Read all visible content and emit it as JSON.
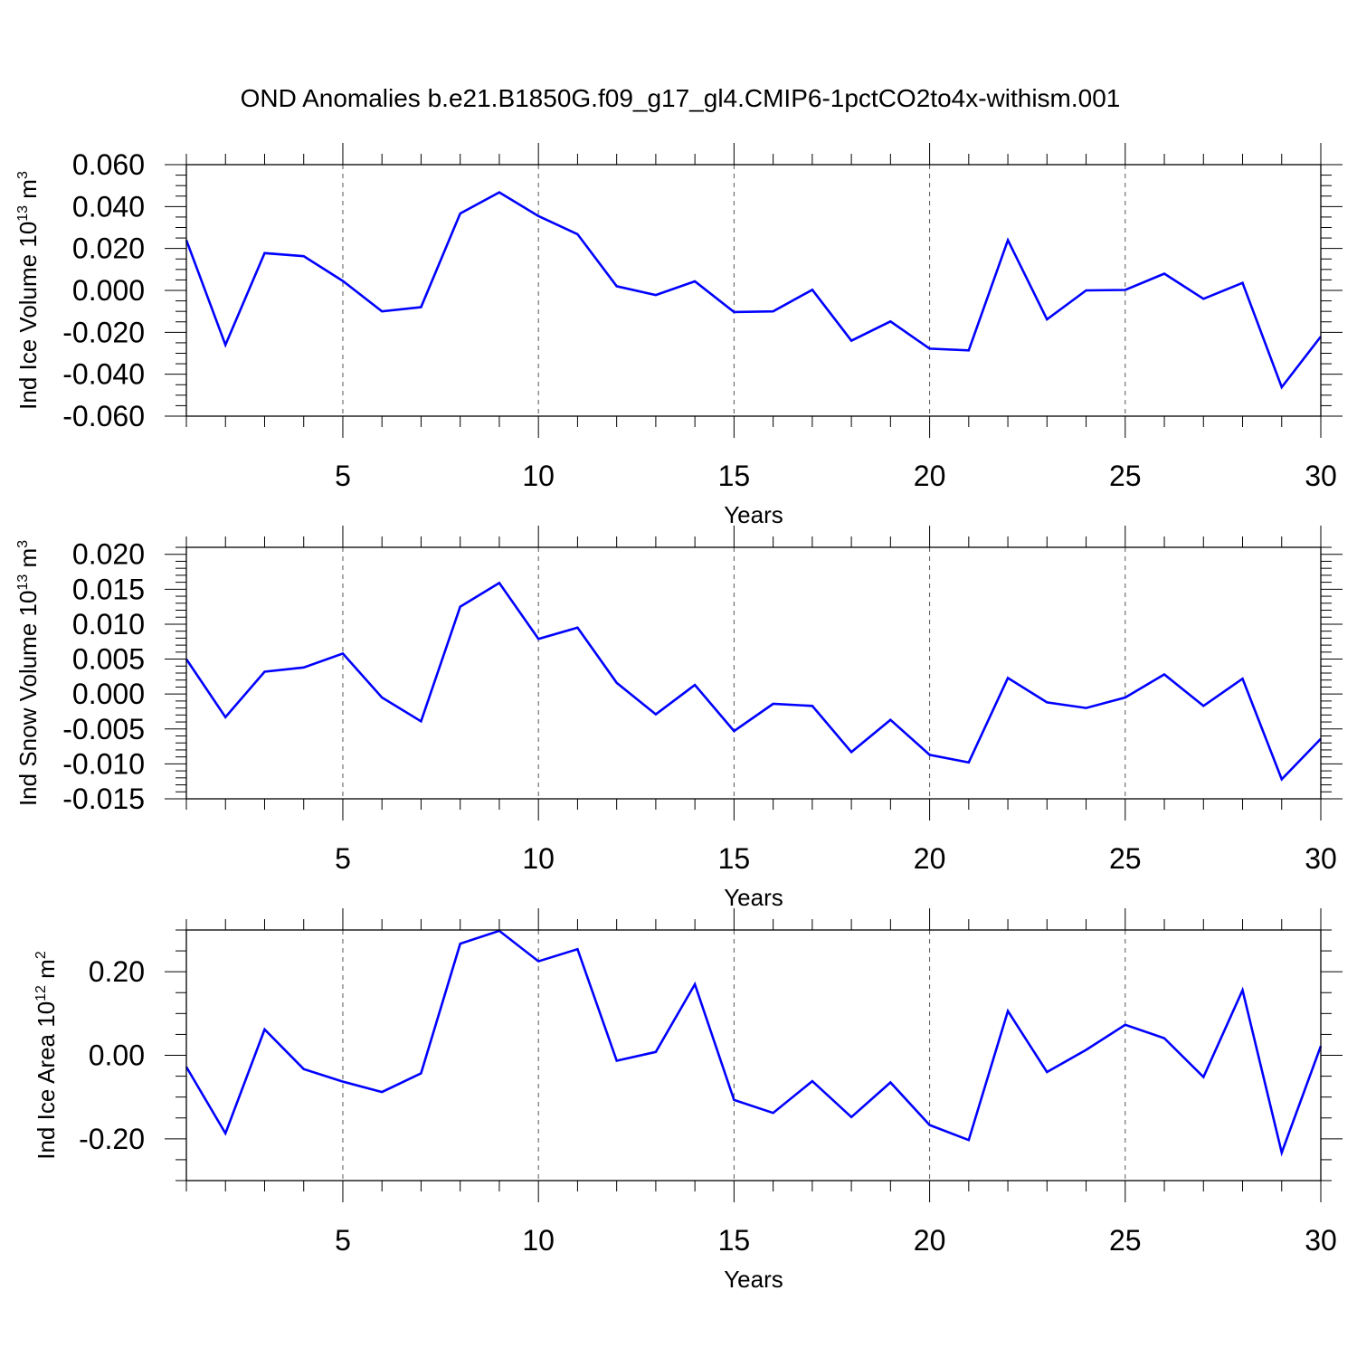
{
  "figure": {
    "title": "OND Anomalies b.e21.B1850G.f09_g17_gl4.CMIP6-1pctCO2to4x-withism.001",
    "line_color": "#0000ff",
    "grid_color": "#555555"
  },
  "chart_data": [
    {
      "type": "line",
      "id": "ice-volume",
      "ylabel_main": "Ind Ice Volume 10",
      "ylabel_exp": "13",
      "ylabel_unit": " m",
      "ylabel_unit_exp": "3",
      "xlabel": "Years",
      "xlim": [
        1,
        30
      ],
      "ylim": [
        -0.06,
        0.06
      ],
      "xticks": [
        5,
        10,
        15,
        20,
        25,
        30
      ],
      "xtick_labels": [
        "5",
        "10",
        "15",
        "20",
        "25",
        "30"
      ],
      "yticks": [
        -0.06,
        -0.04,
        -0.02,
        0.0,
        0.02,
        0.04,
        0.06
      ],
      "ytick_labels": [
        "-0.060",
        "-0.040",
        "-0.020",
        "0.000",
        "0.020",
        "0.040",
        "0.060"
      ],
      "yminor_step": 0.005,
      "grid": "vertical dashed at x ticks",
      "x": [
        1,
        2,
        3,
        4,
        5,
        6,
        7,
        8,
        9,
        10,
        11,
        12,
        13,
        14,
        15,
        16,
        17,
        18,
        19,
        20,
        21,
        22,
        23,
        24,
        25,
        26,
        27,
        28,
        29,
        30
      ],
      "values": [
        0.024,
        -0.026,
        0.0178,
        0.0163,
        0.0045,
        -0.01,
        -0.008,
        0.0367,
        0.0468,
        0.0355,
        0.0268,
        0.002,
        -0.0022,
        0.0043,
        -0.0103,
        -0.01,
        0.0003,
        -0.024,
        -0.0148,
        -0.0278,
        -0.0286,
        0.024,
        -0.0138,
        0.0,
        0.0002,
        0.008,
        -0.004,
        0.0036,
        -0.0462,
        -0.022
      ]
    },
    {
      "type": "line",
      "id": "snow-volume",
      "ylabel_main": "Ind Snow Volume 10",
      "ylabel_exp": "13",
      "ylabel_unit": " m",
      "ylabel_unit_exp": "3",
      "xlabel": "Years",
      "xlim": [
        1,
        30
      ],
      "ylim": [
        -0.015,
        0.021
      ],
      "xticks": [
        5,
        10,
        15,
        20,
        25,
        30
      ],
      "xtick_labels": [
        "5",
        "10",
        "15",
        "20",
        "25",
        "30"
      ],
      "yticks": [
        -0.015,
        -0.01,
        -0.005,
        0.0,
        0.005,
        0.01,
        0.015,
        0.02
      ],
      "ytick_labels": [
        "-0.015",
        "-0.010",
        "-0.005",
        "0.000",
        "0.005",
        "0.010",
        "0.015",
        "0.020"
      ],
      "yminor_step": 0.001,
      "grid": "vertical dashed at x ticks",
      "x": [
        1,
        2,
        3,
        4,
        5,
        6,
        7,
        8,
        9,
        10,
        11,
        12,
        13,
        14,
        15,
        16,
        17,
        18,
        19,
        20,
        21,
        22,
        23,
        24,
        25,
        26,
        27,
        28,
        29,
        30
      ],
      "values": [
        0.005,
        -0.0033,
        0.0032,
        0.0038,
        0.0058,
        -0.0005,
        -0.0039,
        0.0125,
        0.0159,
        0.0079,
        0.0095,
        0.0016,
        -0.0029,
        0.0013,
        -0.0053,
        -0.0014,
        -0.0017,
        -0.0083,
        -0.0037,
        -0.0087,
        -0.0098,
        0.0023,
        -0.0012,
        -0.002,
        -0.0005,
        0.0028,
        -0.0017,
        0.0022,
        -0.0122,
        -0.0064
      ]
    },
    {
      "type": "line",
      "id": "ice-area",
      "ylabel_main": "Ind Ice Area 10",
      "ylabel_exp": "12",
      "ylabel_unit": " m",
      "ylabel_unit_exp": "2",
      "xlabel": "Years",
      "xlim": [
        1,
        30
      ],
      "ylim": [
        -0.3,
        0.3
      ],
      "xticks": [
        5,
        10,
        15,
        20,
        25,
        30
      ],
      "xtick_labels": [
        "5",
        "10",
        "15",
        "20",
        "25",
        "30"
      ],
      "yticks": [
        -0.2,
        0.0,
        0.2
      ],
      "ytick_labels": [
        "-0.20",
        "0.00",
        "0.20"
      ],
      "yminor_step": 0.05,
      "grid": "vertical dashed at x ticks",
      "x": [
        1,
        2,
        3,
        4,
        5,
        6,
        7,
        8,
        9,
        10,
        11,
        12,
        13,
        14,
        15,
        16,
        17,
        18,
        19,
        20,
        21,
        22,
        23,
        24,
        25,
        26,
        27,
        28,
        29,
        30
      ],
      "values": [
        -0.028,
        -0.187,
        0.062,
        -0.033,
        -0.063,
        -0.088,
        -0.043,
        0.267,
        0.298,
        0.225,
        0.254,
        -0.013,
        0.008,
        0.17,
        -0.107,
        -0.138,
        -0.062,
        -0.148,
        -0.065,
        -0.167,
        -0.203,
        0.106,
        -0.04,
        0.013,
        0.073,
        0.041,
        -0.052,
        0.156,
        -0.233,
        0.022
      ]
    }
  ]
}
